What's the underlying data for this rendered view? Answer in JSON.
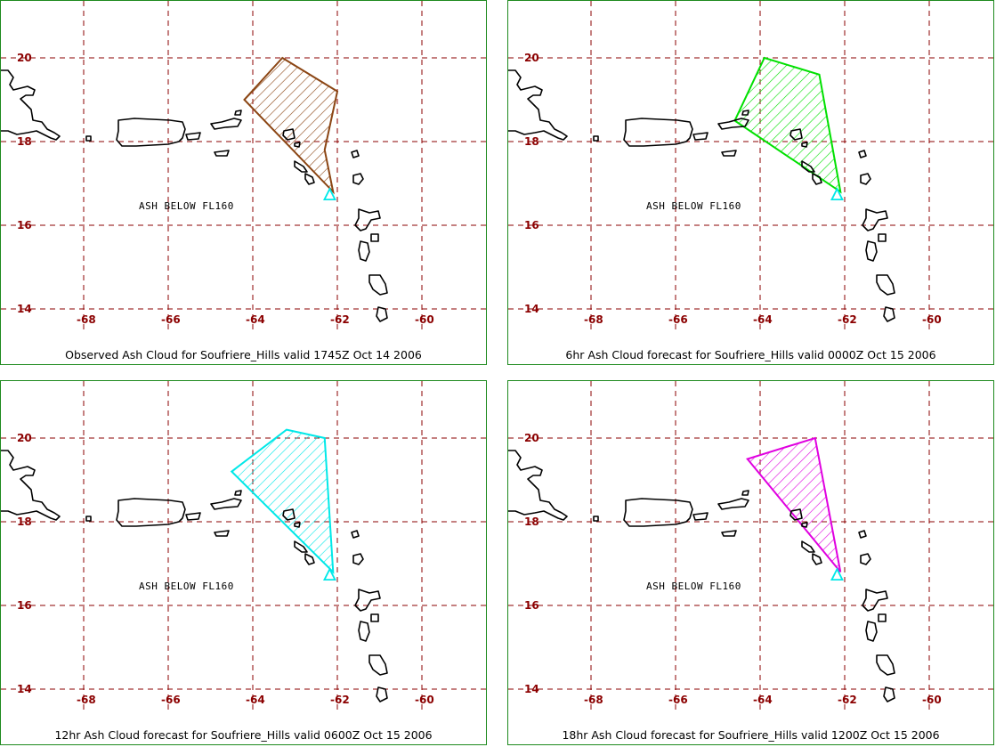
{
  "panels": [
    {
      "caption": "Observed Ash Cloud for Soufriere_Hills valid 1745Z Oct 14 2006",
      "annotation": "ASH BELOW FL160",
      "cloud_color": "#8b4513",
      "cloud_polygon_lonlat": [
        [
          -63.3,
          20.0
        ],
        [
          -62.0,
          19.2
        ],
        [
          -62.3,
          17.8
        ],
        [
          -62.1,
          16.8
        ],
        [
          -64.2,
          19.0
        ]
      ]
    },
    {
      "caption": "6hr Ash Cloud forecast for Soufriere_Hills valid 0000Z Oct 15 2006",
      "annotation": "ASH BELOW FL160",
      "cloud_color": "#00e000",
      "cloud_polygon_lonlat": [
        [
          -63.9,
          20.0
        ],
        [
          -62.6,
          19.6
        ],
        [
          -62.1,
          16.8
        ],
        [
          -64.6,
          18.5
        ]
      ]
    },
    {
      "caption": "12hr Ash Cloud forecast for Soufriere_Hills valid 0600Z Oct 15 2006",
      "annotation": "ASH BELOW FL160",
      "cloud_color": "#00e8e8",
      "cloud_polygon_lonlat": [
        [
          -63.2,
          20.2
        ],
        [
          -62.3,
          20.0
        ],
        [
          -62.1,
          16.8
        ],
        [
          -64.5,
          19.2
        ]
      ]
    },
    {
      "caption": "18hr Ash Cloud forecast for Soufriere_Hills valid 1200Z Oct 15 2006",
      "annotation": "ASH BELOW FL160",
      "cloud_color": "#e000e0",
      "cloud_polygon_lonlat": [
        [
          -62.7,
          20.0
        ],
        [
          -62.1,
          16.8
        ],
        [
          -64.3,
          19.5
        ]
      ]
    }
  ],
  "map": {
    "grid_color": "#8b0000",
    "coastline_color": "#000000",
    "frame_color": "#1e8a1e",
    "volcano_marker_color": "#00e8e8",
    "volcano_lonlat": [
      -62.18,
      16.72
    ],
    "lon_ticks": [
      -68,
      -66,
      -64,
      -62,
      -60
    ],
    "lat_ticks": [
      14,
      16,
      18,
      20
    ]
  }
}
